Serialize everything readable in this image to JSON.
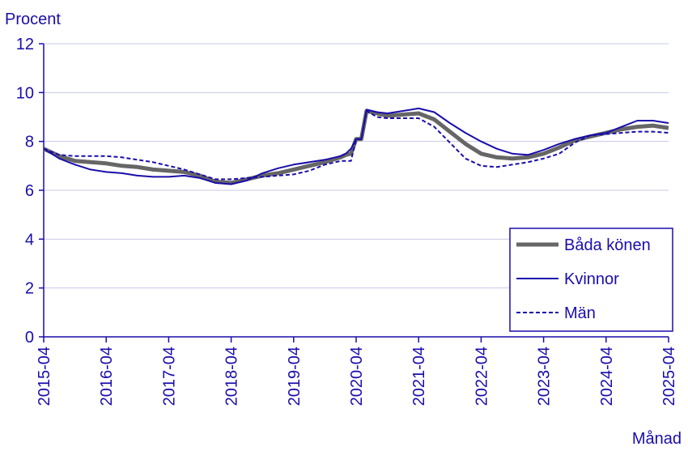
{
  "chart_data": {
    "type": "line",
    "ylabel": "Procent",
    "xlabel": "Månad",
    "ylim": [
      0,
      12
    ],
    "yticks": [
      0,
      2,
      4,
      6,
      8,
      10,
      12
    ],
    "xlim": [
      "2015-04",
      "2025-04"
    ],
    "xticks": [
      "2015-04",
      "2016-04",
      "2017-04",
      "2018-04",
      "2019-04",
      "2020-04",
      "2021-04",
      "2022-04",
      "2023-04",
      "2024-04",
      "2025-04"
    ],
    "grid": "horizontal",
    "legend_position": "bottom-right",
    "colors": {
      "axis": "#1a0dab",
      "grid": "#c8c8e6",
      "both": "#666666",
      "women": "#1a0dab",
      "men": "#1a0dab"
    },
    "series": [
      {
        "name": "Båda könen",
        "key": "both",
        "style": "thick",
        "points": [
          [
            "2015-04",
            7.7
          ],
          [
            "2015-07",
            7.4
          ],
          [
            "2015-10",
            7.2
          ],
          [
            "2016-01",
            7.15
          ],
          [
            "2016-04",
            7.1
          ],
          [
            "2016-07",
            7.0
          ],
          [
            "2016-10",
            6.95
          ],
          [
            "2017-01",
            6.85
          ],
          [
            "2017-04",
            6.8
          ],
          [
            "2017-07",
            6.75
          ],
          [
            "2017-10",
            6.6
          ],
          [
            "2018-01",
            6.35
          ],
          [
            "2018-04",
            6.3
          ],
          [
            "2018-07",
            6.45
          ],
          [
            "2018-10",
            6.6
          ],
          [
            "2019-01",
            6.7
          ],
          [
            "2019-04",
            6.85
          ],
          [
            "2019-07",
            7.0
          ],
          [
            "2019-10",
            7.15
          ],
          [
            "2020-01",
            7.35
          ],
          [
            "2020-02",
            7.45
          ],
          [
            "2020-03",
            7.5
          ],
          [
            "2020-04",
            8.1
          ],
          [
            "2020-05",
            8.1
          ],
          [
            "2020-06",
            9.25
          ],
          [
            "2020-08",
            9.15
          ],
          [
            "2020-10",
            9.05
          ],
          [
            "2021-01",
            9.1
          ],
          [
            "2021-04",
            9.15
          ],
          [
            "2021-07",
            8.9
          ],
          [
            "2021-10",
            8.4
          ],
          [
            "2022-01",
            7.9
          ],
          [
            "2022-04",
            7.5
          ],
          [
            "2022-07",
            7.35
          ],
          [
            "2022-10",
            7.3
          ],
          [
            "2023-01",
            7.35
          ],
          [
            "2023-04",
            7.5
          ],
          [
            "2023-07",
            7.75
          ],
          [
            "2023-10",
            8.05
          ],
          [
            "2024-01",
            8.2
          ],
          [
            "2024-04",
            8.35
          ],
          [
            "2024-07",
            8.5
          ],
          [
            "2024-10",
            8.6
          ],
          [
            "2025-01",
            8.65
          ],
          [
            "2025-04",
            8.55
          ]
        ]
      },
      {
        "name": "Kvinnor",
        "key": "women",
        "style": "solid",
        "points": [
          [
            "2015-04",
            7.7
          ],
          [
            "2015-07",
            7.3
          ],
          [
            "2015-10",
            7.05
          ],
          [
            "2016-01",
            6.85
          ],
          [
            "2016-04",
            6.75
          ],
          [
            "2016-07",
            6.7
          ],
          [
            "2016-10",
            6.6
          ],
          [
            "2017-01",
            6.55
          ],
          [
            "2017-04",
            6.55
          ],
          [
            "2017-07",
            6.6
          ],
          [
            "2017-10",
            6.5
          ],
          [
            "2018-01",
            6.3
          ],
          [
            "2018-04",
            6.25
          ],
          [
            "2018-07",
            6.4
          ],
          [
            "2018-10",
            6.7
          ],
          [
            "2019-01",
            6.9
          ],
          [
            "2019-04",
            7.05
          ],
          [
            "2019-07",
            7.15
          ],
          [
            "2019-10",
            7.25
          ],
          [
            "2020-01",
            7.4
          ],
          [
            "2020-02",
            7.5
          ],
          [
            "2020-03",
            7.7
          ],
          [
            "2020-04",
            8.1
          ],
          [
            "2020-05",
            8.1
          ],
          [
            "2020-06",
            9.3
          ],
          [
            "2020-08",
            9.2
          ],
          [
            "2020-10",
            9.15
          ],
          [
            "2021-01",
            9.25
          ],
          [
            "2021-04",
            9.35
          ],
          [
            "2021-07",
            9.2
          ],
          [
            "2021-10",
            8.75
          ],
          [
            "2022-01",
            8.35
          ],
          [
            "2022-04",
            8.0
          ],
          [
            "2022-07",
            7.7
          ],
          [
            "2022-10",
            7.5
          ],
          [
            "2023-01",
            7.45
          ],
          [
            "2023-04",
            7.65
          ],
          [
            "2023-07",
            7.9
          ],
          [
            "2023-10",
            8.1
          ],
          [
            "2024-01",
            8.25
          ],
          [
            "2024-04",
            8.35
          ],
          [
            "2024-07",
            8.6
          ],
          [
            "2024-10",
            8.85
          ],
          [
            "2025-01",
            8.85
          ],
          [
            "2025-04",
            8.75
          ]
        ]
      },
      {
        "name": "Män",
        "key": "men",
        "style": "dashed",
        "points": [
          [
            "2015-04",
            7.7
          ],
          [
            "2015-07",
            7.45
          ],
          [
            "2015-10",
            7.4
          ],
          [
            "2016-01",
            7.4
          ],
          [
            "2016-04",
            7.4
          ],
          [
            "2016-07",
            7.35
          ],
          [
            "2016-10",
            7.25
          ],
          [
            "2017-01",
            7.15
          ],
          [
            "2017-04",
            7.0
          ],
          [
            "2017-07",
            6.85
          ],
          [
            "2017-10",
            6.65
          ],
          [
            "2018-01",
            6.45
          ],
          [
            "2018-04",
            6.45
          ],
          [
            "2018-07",
            6.5
          ],
          [
            "2018-10",
            6.55
          ],
          [
            "2019-01",
            6.6
          ],
          [
            "2019-04",
            6.65
          ],
          [
            "2019-07",
            6.8
          ],
          [
            "2019-10",
            7.05
          ],
          [
            "2020-01",
            7.2
          ],
          [
            "2020-02",
            7.2
          ],
          [
            "2020-03",
            7.2
          ],
          [
            "2020-04",
            8.1
          ],
          [
            "2020-05",
            8.1
          ],
          [
            "2020-06",
            9.25
          ],
          [
            "2020-08",
            9.0
          ],
          [
            "2020-10",
            8.95
          ],
          [
            "2021-01",
            8.95
          ],
          [
            "2021-04",
            8.95
          ],
          [
            "2021-07",
            8.6
          ],
          [
            "2021-10",
            7.95
          ],
          [
            "2022-01",
            7.3
          ],
          [
            "2022-04",
            7.0
          ],
          [
            "2022-07",
            6.95
          ],
          [
            "2022-10",
            7.05
          ],
          [
            "2023-01",
            7.15
          ],
          [
            "2023-04",
            7.3
          ],
          [
            "2023-07",
            7.5
          ],
          [
            "2023-10",
            7.95
          ],
          [
            "2024-01",
            8.25
          ],
          [
            "2024-04",
            8.3
          ],
          [
            "2024-07",
            8.35
          ],
          [
            "2024-10",
            8.4
          ],
          [
            "2025-01",
            8.4
          ],
          [
            "2025-04",
            8.35
          ]
        ]
      }
    ]
  }
}
